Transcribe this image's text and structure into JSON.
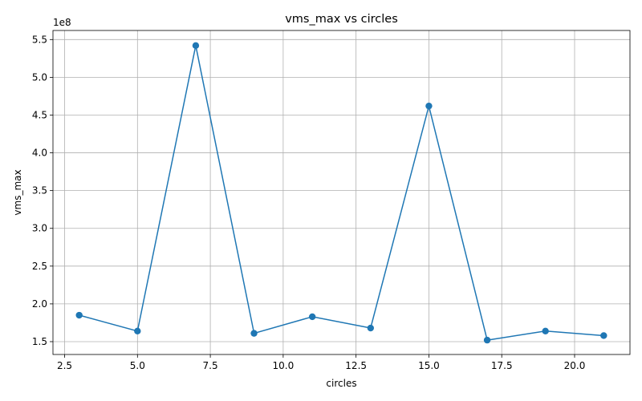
{
  "chart_data": {
    "type": "line",
    "title": "vms_max vs circles",
    "xlabel": "circles",
    "ylabel": "vms_max",
    "y_offset_label": "1e8",
    "xlim": [
      2.1,
      21.9
    ],
    "ylim": [
      133000000.0,
      562000000.0
    ],
    "x_ticks": [
      2.5,
      5.0,
      7.5,
      10.0,
      12.5,
      15.0,
      17.5,
      20.0
    ],
    "x_tick_labels": [
      "2.5",
      "5.0",
      "7.5",
      "10.0",
      "12.5",
      "15.0",
      "17.5",
      "20.0"
    ],
    "y_ticks": [
      150000000.0,
      200000000.0,
      250000000.0,
      300000000.0,
      350000000.0,
      400000000.0,
      450000000.0,
      500000000.0,
      550000000.0
    ],
    "y_tick_labels": [
      "1.5",
      "2.0",
      "2.5",
      "3.0",
      "3.5",
      "4.0",
      "4.5",
      "5.0",
      "5.5"
    ],
    "grid": true,
    "color": "#1f77b4",
    "series": [
      {
        "x": [
          3,
          5,
          7,
          9,
          11,
          13,
          15,
          17,
          19,
          21
        ],
        "y": [
          185000000.0,
          164000000.0,
          542000000.0,
          161000000.0,
          183000000.0,
          168000000.0,
          462000000.0,
          152000000.0,
          164000000.0,
          158000000.0
        ]
      }
    ]
  }
}
